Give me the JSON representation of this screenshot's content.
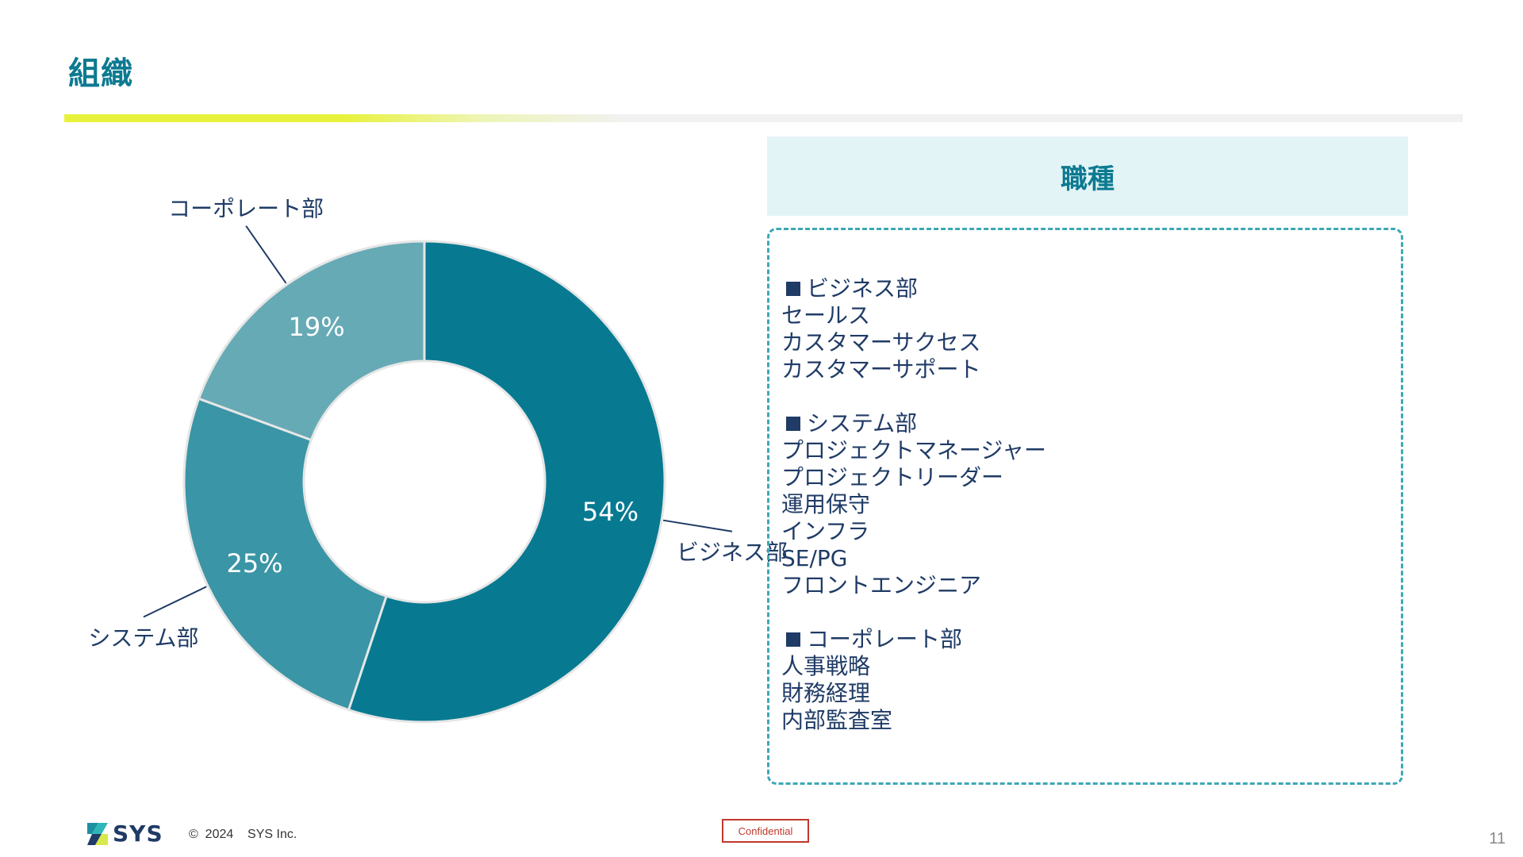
{
  "slide": {
    "title": "組織"
  },
  "chart_data": {
    "type": "pie",
    "donut": true,
    "categories": [
      "ビジネス部",
      "システム部",
      "コーポレート部"
    ],
    "values": [
      54,
      25,
      19
    ],
    "labels": [
      "54%",
      "25%",
      "19%"
    ],
    "colors": [
      "#077a91",
      "#3a95a6",
      "#66aab5"
    ],
    "legend": "none",
    "title": ""
  },
  "panel": {
    "header": "職種",
    "groups": [
      {
        "heading": "ビジネス部",
        "items": [
          "セールス",
          "カスタマーサクセス",
          "カスタマーサポート"
        ]
      },
      {
        "heading": "システム部",
        "items": [
          "プロジェクトマネージャー",
          "プロジェクトリーダー",
          "運用保守",
          "インフラ",
          "SE/PG",
          "フロントエンジニア"
        ]
      },
      {
        "heading": "コーポレート部",
        "items": [
          "人事戦略",
          "財務経理",
          "内部監査室"
        ]
      }
    ]
  },
  "footer": {
    "logo_text": "SYS",
    "copyright": "©  2024    SYS Inc.",
    "confidential": "Confidential",
    "page_number": "11"
  }
}
